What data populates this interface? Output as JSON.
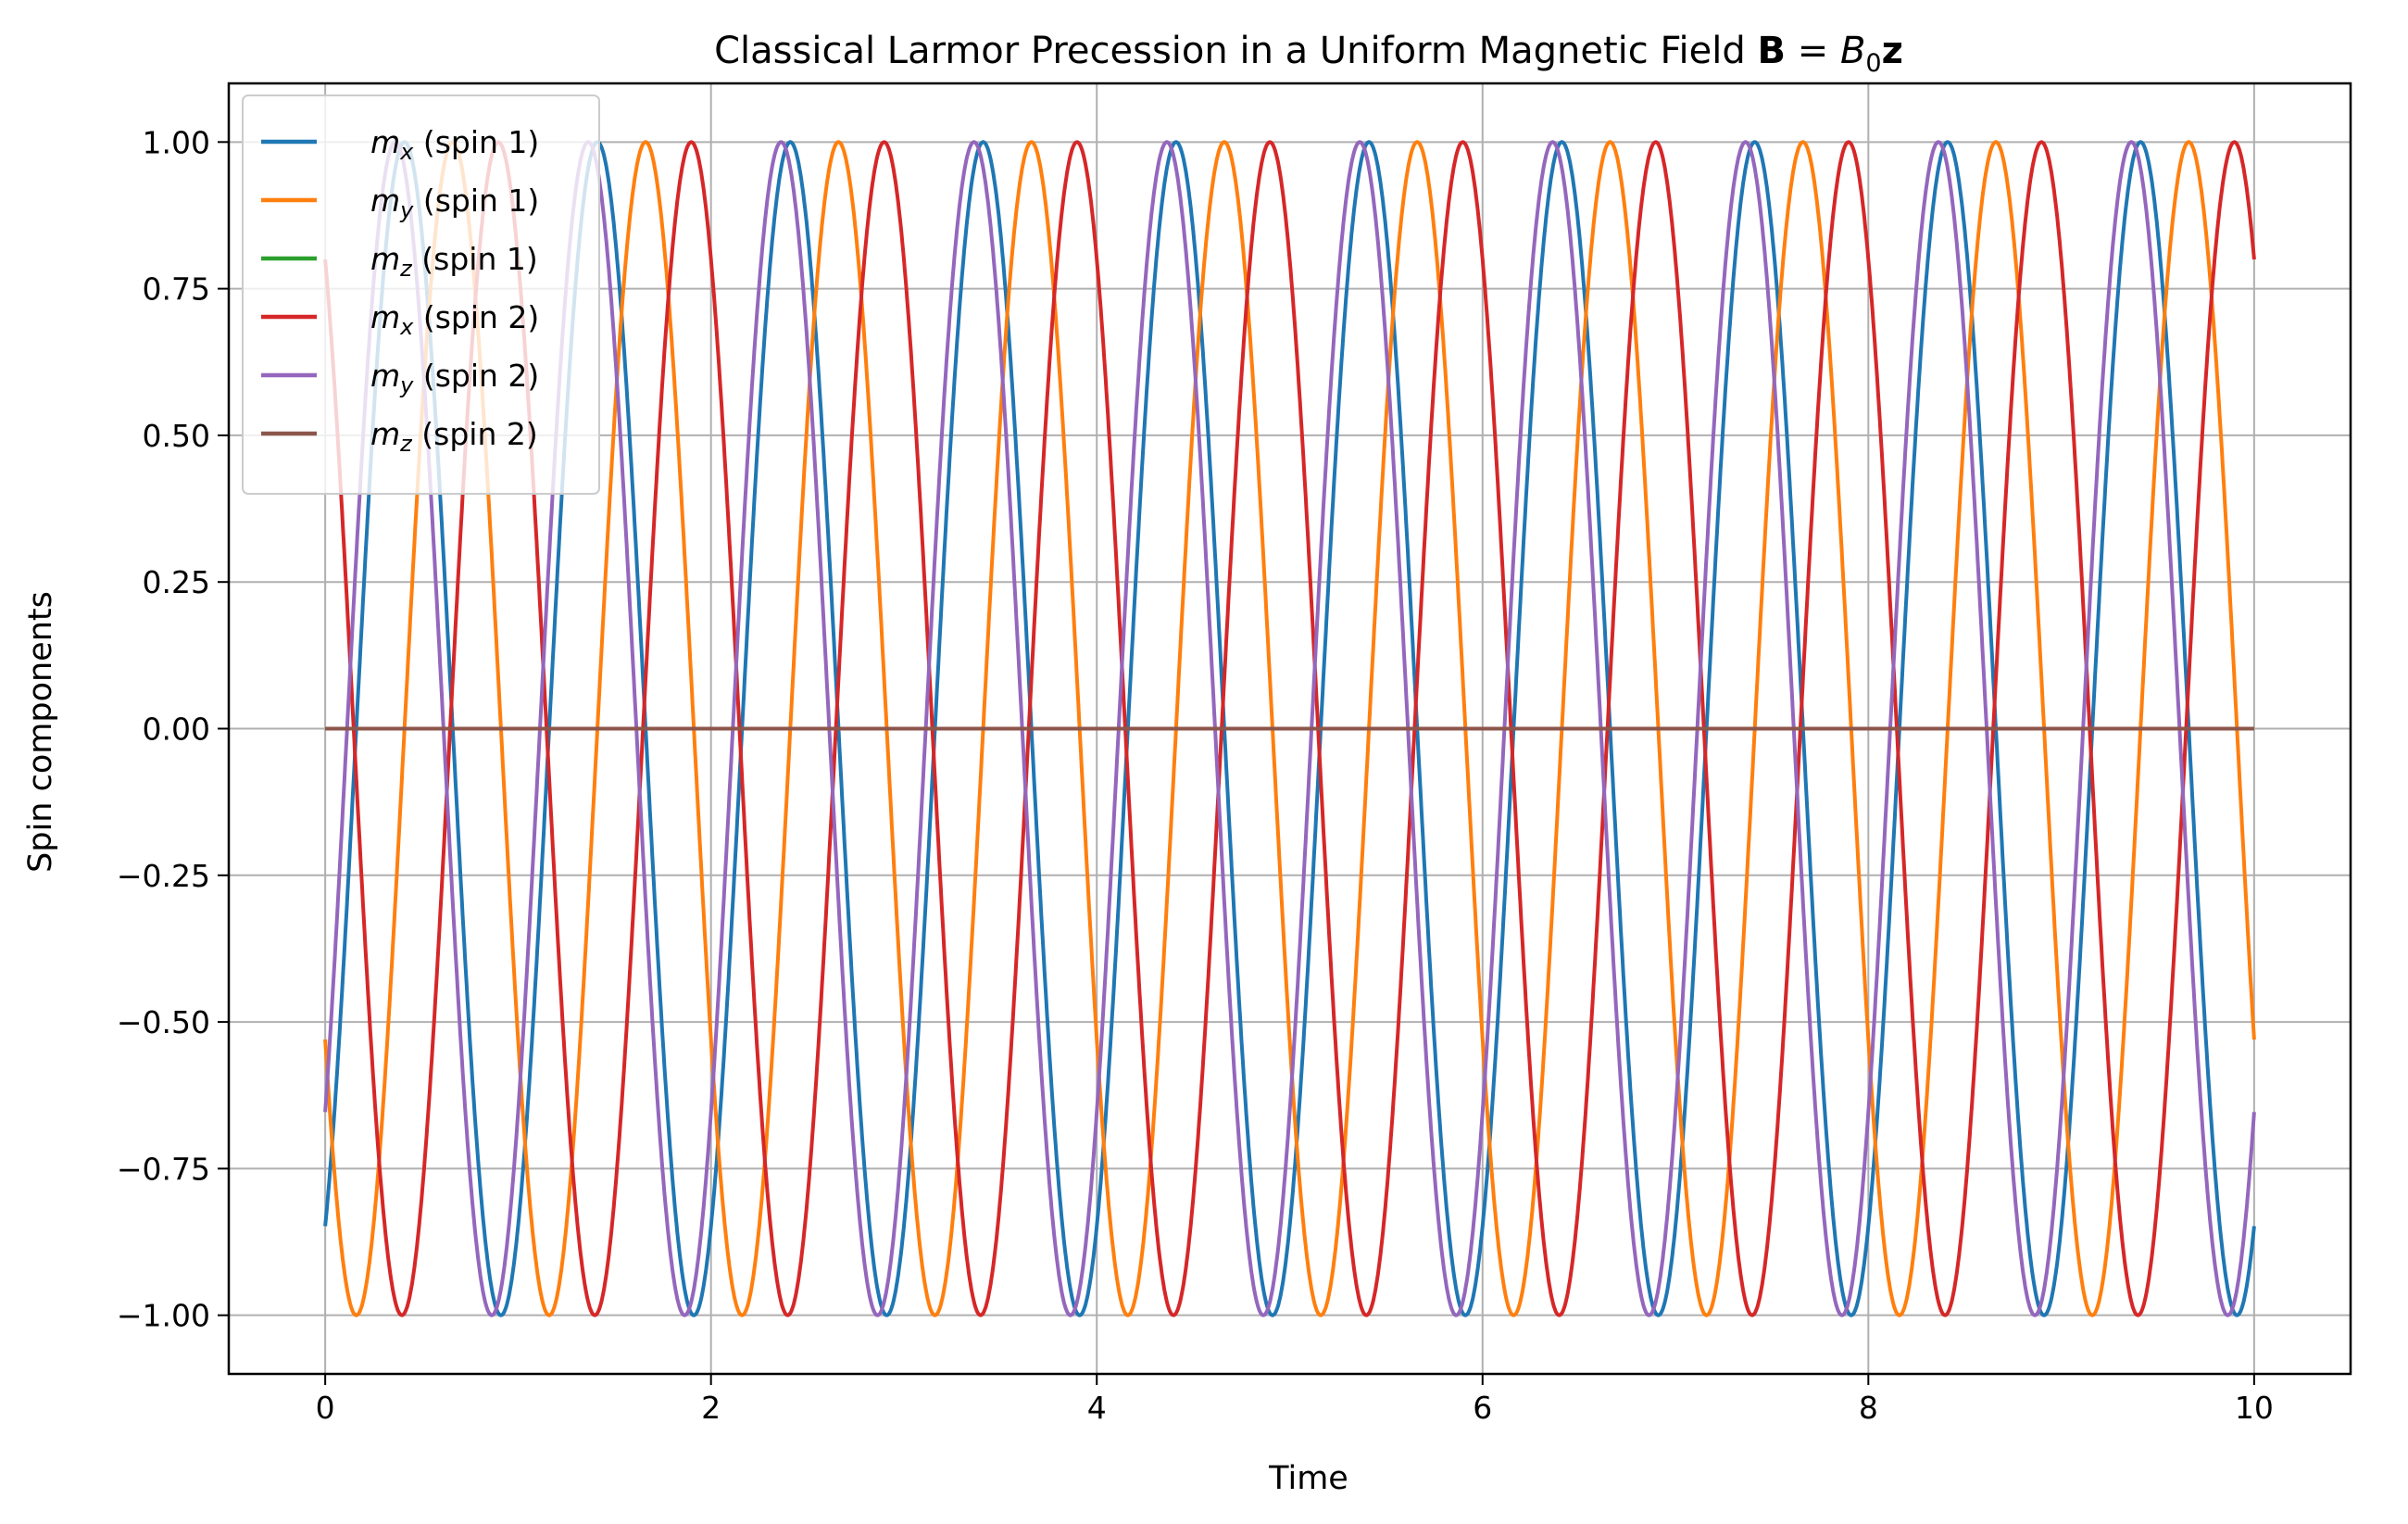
{
  "chart_data": {
    "type": "line",
    "title": "Classical Larmor Precession in a Uniform Magnetic Field 𝐁 = B₀𝐳",
    "xlabel": "Time",
    "ylabel": "Spin components",
    "xlim": [
      -0.5,
      10.5
    ],
    "ylim": [
      -1.1,
      1.1
    ],
    "xticks": [
      0,
      2,
      4,
      6,
      8,
      10
    ],
    "xtick_labels": [
      "0",
      "2",
      "4",
      "6",
      "8",
      "10"
    ],
    "yticks": [
      1.0,
      0.75,
      0.5,
      0.25,
      0.0,
      -0.25,
      -0.5,
      -0.75,
      -1.0
    ],
    "ytick_labels": [
      "1.00",
      "0.75",
      "0.50",
      "0.25",
      "0.00",
      "−0.25",
      "−0.50",
      "−0.75",
      "−1.00"
    ],
    "grid": true,
    "legend_position": "top-left",
    "series": [
      {
        "name": "mₓ (spin 1)",
        "color": "#1f77b4",
        "function": "cos",
        "omega": 6.2832,
        "phase": 3.7,
        "amplitude": 1.0,
        "x_range": [
          0,
          10
        ]
      },
      {
        "name": "m_y (spin 1)",
        "color": "#ff7f0e",
        "function": "sin",
        "omega": 6.2832,
        "phase": 3.7,
        "amplitude": 1.0,
        "x_range": [
          0,
          10
        ]
      },
      {
        "name": "m_z (spin 1)",
        "color": "#2ca02c",
        "function": "const",
        "value": 0.0,
        "x_range": [
          0,
          10
        ]
      },
      {
        "name": "mₓ (spin 2)",
        "color": "#d62728",
        "function": "cos",
        "omega": 6.2832,
        "phase": 0.6435,
        "amplitude": 1.0,
        "x_range": [
          0,
          10
        ]
      },
      {
        "name": "m_y (spin 2)",
        "color": "#9467bd",
        "function": "cos",
        "omega": 6.2832,
        "phase": 4.0,
        "amplitude": 1.0,
        "x_range": [
          0,
          10
        ]
      },
      {
        "name": "m_z (spin 2)",
        "color": "#8c564b",
        "function": "const",
        "value": 0.0,
        "x_range": [
          0,
          10
        ]
      }
    ]
  },
  "legend": {
    "items": [
      {
        "var": "m",
        "sub": "x",
        "suffix": " (spin 1)",
        "color": "#1f77b4"
      },
      {
        "var": "m",
        "sub": "y",
        "suffix": " (spin 1)",
        "color": "#ff7f0e"
      },
      {
        "var": "m",
        "sub": "z",
        "suffix": " (spin 1)",
        "color": "#2ca02c"
      },
      {
        "var": "m",
        "sub": "x",
        "suffix": " (spin 2)",
        "color": "#d62728"
      },
      {
        "var": "m",
        "sub": "y",
        "suffix": " (spin 2)",
        "color": "#9467bd"
      },
      {
        "var": "m",
        "sub": "z",
        "suffix": " (spin 2)",
        "color": "#8c564b"
      }
    ]
  },
  "title_parts": {
    "text": "Classical Larmor Precession in a Uniform Magnetic Field ",
    "bold_b": "B",
    "equals": " = ",
    "b_var": "B",
    "b_sub": "0",
    "bold_z": "z"
  }
}
